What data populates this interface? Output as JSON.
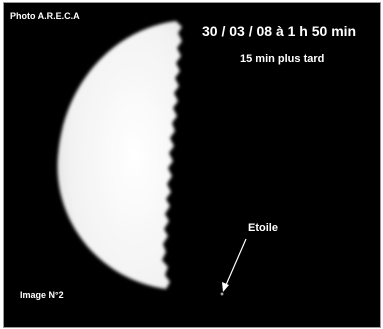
{
  "caption": {
    "credit": "Photo A.R.E.C.A",
    "datetime": "30 / 03 / 08 à 1 h 50 min",
    "note": "15 min plus tard",
    "star_label": "Etoile",
    "image_label": "Image N°2"
  },
  "colors": {
    "background": "#000000",
    "moon": "#f4f4f4",
    "text": "#ffffff",
    "frame_border": "#9a9a9a"
  }
}
